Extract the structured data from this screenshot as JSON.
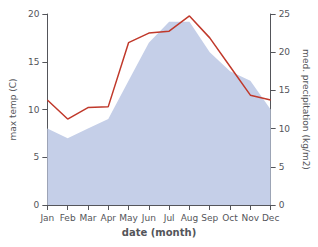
{
  "chart_data": {
    "type": "line",
    "xlabel": "date (month)",
    "ylabel": "max temp (C)",
    "y2label": "med. precipitation (kg/m2)",
    "categories": [
      "Jan",
      "Feb",
      "Mar",
      "Apr",
      "May",
      "Jun",
      "Jul",
      "Aug",
      "Sep",
      "Oct",
      "Nov",
      "Dec"
    ],
    "series": [
      {
        "type": "area",
        "color": "#c5cfe8",
        "values": [
          8.0,
          7.0,
          8.0,
          9.0,
          13.0,
          17.0,
          19.2,
          19.2,
          16.0,
          14.0,
          13.0,
          10.0
        ]
      },
      {
        "type": "line",
        "color": "#c0392b",
        "values": [
          11.0,
          9.0,
          10.2,
          10.3,
          17.0,
          18.0,
          18.2,
          19.8,
          17.5,
          14.5,
          11.5,
          11.0
        ]
      }
    ],
    "ylim": [
      0,
      20
    ],
    "yticks": [
      0,
      5,
      10,
      15,
      20
    ],
    "y2lim": [
      0,
      25
    ],
    "y2ticks": [
      0,
      5,
      10,
      15,
      20,
      25
    ],
    "grid": false
  }
}
